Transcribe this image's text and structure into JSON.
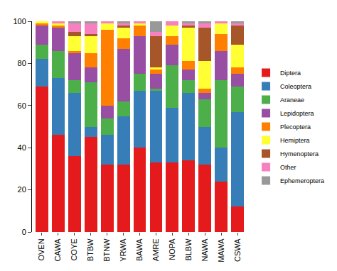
{
  "chart_data": {
    "type": "bar",
    "stacked": true,
    "legend": "right",
    "grid": false,
    "categories": [
      "OVEN",
      "CAWA",
      "COYE",
      "BTBW",
      "BTNW",
      "YRWA",
      "BAWA",
      "AMRE",
      "NOPA",
      "BLBW",
      "NAWA",
      "MAWA",
      "CSWA"
    ],
    "ylim": [
      0,
      100
    ],
    "yticks": [
      0,
      20,
      40,
      60,
      80,
      100
    ],
    "series": [
      {
        "name": "Diptera",
        "color": "#e41a1c",
        "values": [
          69,
          46,
          36,
          45,
          32,
          32,
          40,
          33,
          33,
          34,
          32,
          24,
          12
        ]
      },
      {
        "name": "Coleoptera",
        "color": "#377eb8",
        "values": [
          13,
          27,
          30,
          5,
          14,
          23,
          27,
          34,
          26,
          32,
          18,
          16,
          45
        ]
      },
      {
        "name": "Araneae",
        "color": "#4daf4a",
        "values": [
          7,
          13,
          6,
          21,
          8,
          7,
          8,
          1,
          20,
          6,
          13,
          32,
          12
        ]
      },
      {
        "name": "Lepidoptera",
        "color": "#984ea3",
        "values": [
          9,
          11,
          13,
          7,
          6,
          25,
          18,
          7,
          10,
          5,
          3,
          14,
          6
        ]
      },
      {
        "name": "Plecoptera",
        "color": "#ff7f00",
        "values": [
          1,
          1,
          1,
          7,
          36,
          5,
          5,
          2,
          4,
          4,
          2,
          8,
          3
        ]
      },
      {
        "name": "Hemiptera",
        "color": "#ffff33",
        "values": [
          1,
          1,
          7,
          8,
          3,
          5,
          1,
          1,
          5,
          16,
          13,
          5,
          11
        ]
      },
      {
        "name": "Hymenoptera",
        "color": "#a65628",
        "values": [
          0,
          0,
          2,
          1,
          0,
          1,
          0,
          15,
          0,
          1,
          16,
          0,
          9
        ]
      },
      {
        "name": "Other",
        "color": "#f781bf",
        "values": [
          0,
          1,
          4,
          5,
          1,
          1,
          1,
          2,
          2,
          1,
          2,
          1,
          1
        ]
      },
      {
        "name": "Ephemeroptera",
        "color": "#999999",
        "values": [
          0,
          0,
          1,
          1,
          0,
          1,
          0,
          5,
          0,
          1,
          1,
          0,
          1
        ]
      }
    ]
  }
}
